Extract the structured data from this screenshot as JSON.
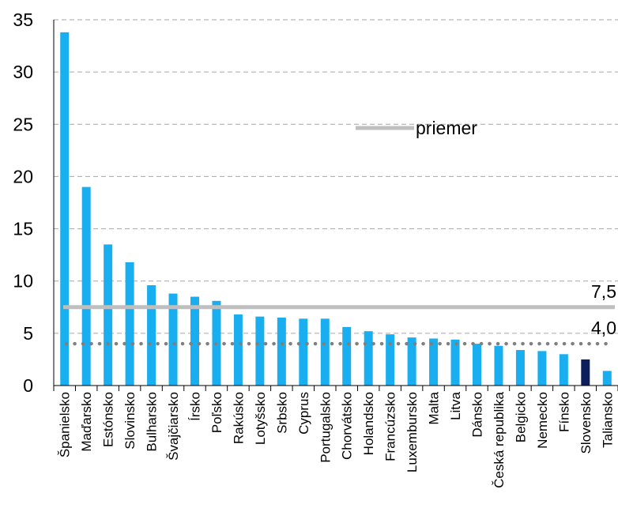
{
  "chart_data": {
    "type": "bar",
    "categories": [
      "Španielsko",
      "Maďarsko",
      "Estónsko",
      "Slovinsko",
      "Bulharsko",
      "Švajčiarsko",
      "Írsko",
      "Poľsko",
      "Rakúsko",
      "Lotyšsko",
      "Srbsko",
      "Cyprus",
      "Portugalsko",
      "Chorvátsko",
      "Holandsko",
      "Francúzsko",
      "Luxembursko",
      "Malta",
      "Litva",
      "Dánsko",
      "Česká republika",
      "Belgicko",
      "Nemecko",
      "Fínsko",
      "Slovensko",
      "Taliansko"
    ],
    "values": [
      33.8,
      19.0,
      13.5,
      11.8,
      9.6,
      8.8,
      8.5,
      8.1,
      6.8,
      6.6,
      6.5,
      6.4,
      6.4,
      5.6,
      5.2,
      4.9,
      4.6,
      4.5,
      4.4,
      4.0,
      3.8,
      3.4,
      3.3,
      3.0,
      2.5,
      1.4
    ],
    "highlight_index": 24,
    "ylim": [
      0,
      35
    ],
    "yticks": [
      "0",
      "5",
      "10",
      "15",
      "20",
      "25",
      "30",
      "35"
    ],
    "grid": true,
    "colors": {
      "bar": "#19aeef",
      "highlight": "#0c1f5c",
      "average_line": "#bfbfbf",
      "median_line": "#7f7f7f",
      "grid": "#a6a6a6"
    },
    "reference_lines": [
      {
        "value": 7.5,
        "label": "7,5",
        "style": "solid"
      },
      {
        "value": 4.0,
        "label": "4,0",
        "style": "dotted"
      }
    ],
    "legend": {
      "label": "priemer",
      "placement": "center-right"
    }
  }
}
